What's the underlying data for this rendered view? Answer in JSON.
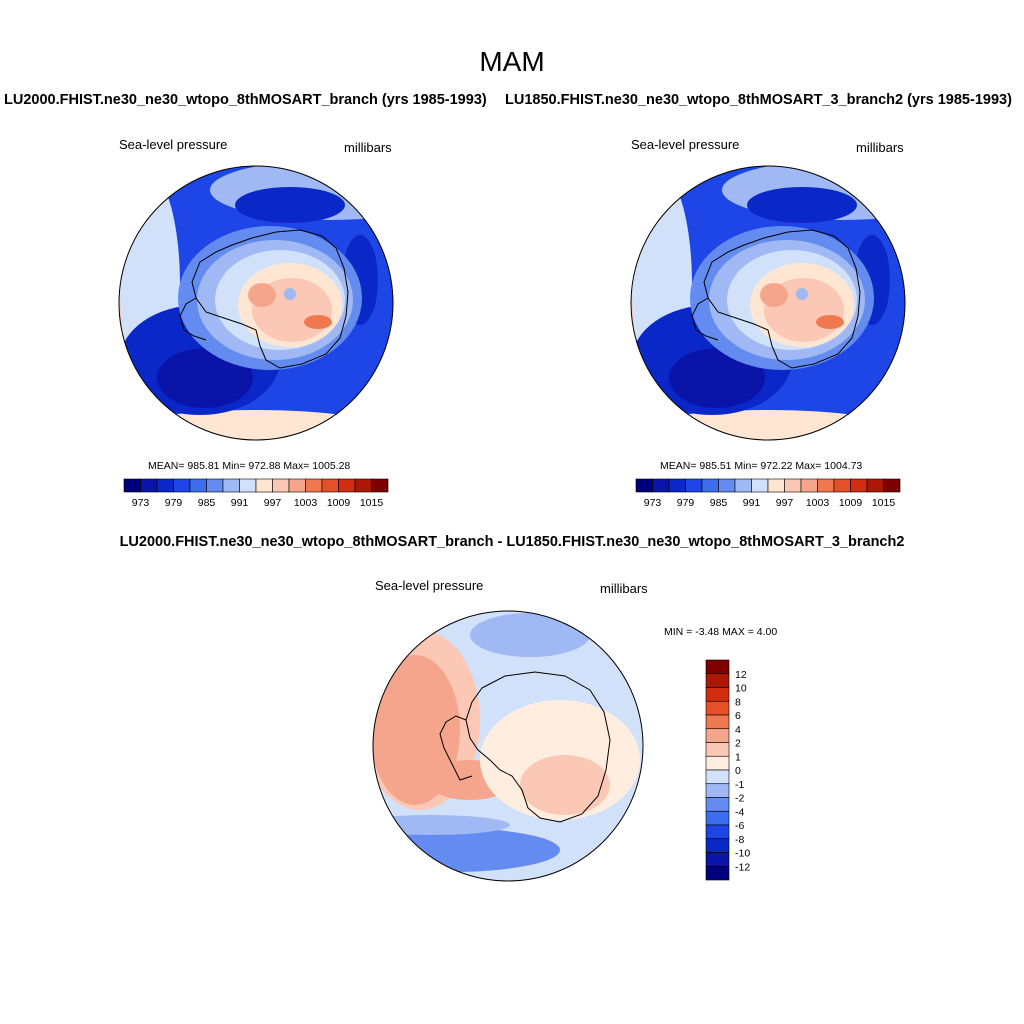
{
  "page": {
    "title": "MAM",
    "diff_title": "LU2000.FHIST.ne30_ne30_wtopo_8thMOSART_branch - LU1850.FHIST.ne30_ne30_wtopo_8thMOSART_3_branch2"
  },
  "panels": [
    {
      "title": "LU2000.FHIST.ne30_ne30_wtopo_8thMOSART_branch (yrs 1985-1993)",
      "variable": "Sea-level pressure",
      "units": "millibars",
      "stats": "MEAN= 985.81  Min= 972.88  Max= 1005.28",
      "mean": 985.81,
      "min": 972.88,
      "max": 1005.28
    },
    {
      "title": "LU1850.FHIST.ne30_ne30_wtopo_8thMOSART_3_branch2 (yrs 1985-1993)",
      "variable": "Sea-level pressure",
      "units": "millibars",
      "stats": "MEAN= 985.51  Min= 972.22  Max= 1004.73",
      "mean": 985.51,
      "min": 972.22,
      "max": 1004.73
    }
  ],
  "difference": {
    "variable": "Sea-level pressure",
    "units": "millibars",
    "stats": "MIN =  -3.48 MAX =   4.00",
    "min": -3.48,
    "max": 4.0
  },
  "colorbar_main": {
    "colors": [
      "#00007f",
      "#0a14a8",
      "#0a28c8",
      "#1e46e6",
      "#3c6ef0",
      "#648cf0",
      "#a0b9f5",
      "#d2e1fa",
      "#ffe6d2",
      "#fac8b4",
      "#f5a58c",
      "#f07850",
      "#e65028",
      "#d22d0f",
      "#aa1905",
      "#800000"
    ],
    "labels": [
      "973",
      "979",
      "985",
      "991",
      "997",
      "1003",
      "1009",
      "1015"
    ]
  },
  "colorbar_diff": {
    "colors": [
      "#00007f",
      "#0a14a8",
      "#0a28c8",
      "#1e46e6",
      "#3c6ef0",
      "#648cf0",
      "#a0b9f5",
      "#d2e1fa",
      "#ffeee0",
      "#fac8b4",
      "#f5a58c",
      "#f07850",
      "#e65028",
      "#d22d0f",
      "#aa1905",
      "#800000"
    ],
    "labels": [
      "12",
      "10",
      "8",
      "6",
      "4",
      "2",
      "1",
      "0",
      "-1",
      "-2",
      "-4",
      "-6",
      "-8",
      "-10",
      "-12"
    ]
  }
}
